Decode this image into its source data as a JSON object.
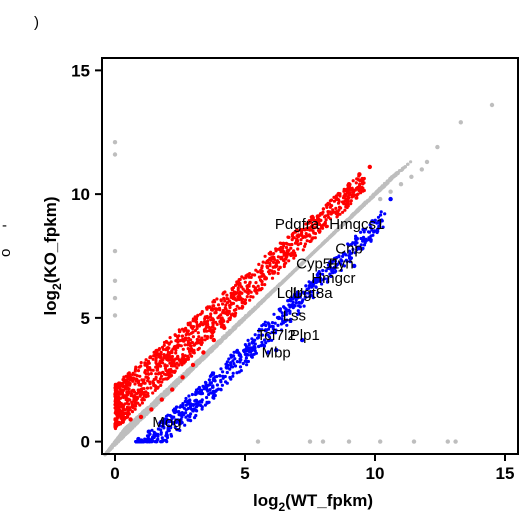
{
  "chart_data": {
    "type": "scatter",
    "title": "",
    "xlabel": {
      "base": "log",
      "sub": "2",
      "rest": "(WT_fpkm)"
    },
    "ylabel": {
      "base": "log",
      "sub": "2",
      "rest": "(KO_fpkm)"
    },
    "xlim": [
      -0.5,
      15.5
    ],
    "ylim": [
      -0.5,
      15.5
    ],
    "x_ticks": [
      0,
      5,
      10,
      15
    ],
    "y_ticks": [
      0,
      5,
      10,
      15
    ],
    "x_tick_labels": [
      "0",
      "5",
      "10",
      "15"
    ],
    "y_tick_labels": [
      "0",
      "5",
      "10",
      "15"
    ],
    "grid": false,
    "colors": {
      "up": "#ff0000",
      "down": "#0000ff",
      "unchanged": "#bebebe"
    },
    "series": [
      {
        "key": "unchanged",
        "color": "#bebebe",
        "points": [
          [
            14.5,
            13.6
          ],
          [
            13.3,
            12.9
          ],
          [
            12.4,
            11.9
          ],
          [
            12.0,
            11.3
          ],
          [
            11.8,
            11.0
          ],
          [
            11.4,
            10.7
          ],
          [
            11.0,
            10.4
          ],
          [
            10.6,
            10.1
          ],
          [
            10.2,
            9.8
          ],
          [
            0.0,
            12.1
          ],
          [
            0.0,
            11.6
          ],
          [
            0.0,
            7.7
          ],
          [
            0.0,
            6.5
          ],
          [
            0.0,
            5.8
          ],
          [
            0.0,
            5.1
          ],
          [
            5.5,
            0.0
          ],
          [
            7.5,
            0.0
          ],
          [
            8.0,
            0.0
          ],
          [
            9.0,
            0.0
          ],
          [
            10.2,
            0.0
          ],
          [
            11.5,
            0.0
          ],
          [
            12.8,
            0.0
          ],
          [
            13.1,
            0.0
          ]
        ]
      },
      {
        "key": "up",
        "color": "#ff0000",
        "points": [
          [
            9.8,
            11.1
          ],
          [
            9.4,
            10.8
          ],
          [
            9.0,
            10.4
          ],
          [
            8.6,
            10.0
          ],
          [
            8.2,
            9.6
          ],
          [
            7.8,
            9.1
          ],
          [
            7.4,
            8.6
          ],
          [
            7.0,
            8.1
          ],
          [
            6.6,
            7.6
          ],
          [
            6.2,
            7.1
          ],
          [
            5.8,
            6.6
          ],
          [
            5.4,
            6.1
          ],
          [
            5.0,
            5.6
          ],
          [
            4.6,
            5.1
          ],
          [
            4.2,
            4.6
          ],
          [
            3.8,
            4.1
          ],
          [
            3.4,
            3.6
          ],
          [
            3.0,
            3.1
          ],
          [
            2.6,
            2.6
          ],
          [
            2.2,
            2.1
          ],
          [
            1.8,
            1.7
          ],
          [
            1.4,
            1.3
          ],
          [
            1.0,
            1.0
          ],
          [
            0.6,
            0.9
          ],
          [
            0.3,
            0.8
          ]
        ]
      },
      {
        "key": "down",
        "color": "#0000ff",
        "points": [
          [
            10.6,
            9.8
          ],
          [
            9.9,
            8.9
          ],
          [
            9.3,
            8.2
          ],
          [
            8.8,
            7.6
          ],
          [
            8.3,
            7.0
          ],
          [
            7.8,
            6.5
          ],
          [
            7.3,
            6.0
          ],
          [
            6.8,
            5.5
          ],
          [
            6.3,
            5.0
          ],
          [
            5.8,
            4.5
          ],
          [
            5.3,
            4.0
          ],
          [
            4.8,
            3.5
          ],
          [
            4.3,
            3.0
          ],
          [
            3.8,
            2.5
          ],
          [
            3.3,
            2.0
          ],
          [
            2.8,
            1.6
          ],
          [
            2.3,
            1.2
          ],
          [
            1.8,
            0.8
          ],
          [
            1.3,
            0.4
          ],
          [
            0.9,
            0.1
          ],
          [
            7.2,
            4.1
          ],
          [
            6.2,
            3.7
          ],
          [
            5.9,
            3.6
          ],
          [
            9.2,
            7.1
          ]
        ]
      }
    ],
    "annotations": [
      {
        "text": "Pdgfra",
        "x": 7.0,
        "y": 8.6
      },
      {
        "text": "Hmgcs1",
        "x": 9.3,
        "y": 8.6
      },
      {
        "text": "Cnp",
        "x": 9.0,
        "y": 7.6
      },
      {
        "text": "Cyp51",
        "x": 7.8,
        "y": 7.0
      },
      {
        "text": "Fyn",
        "x": 8.7,
        "y": 7.0
      },
      {
        "text": "Hmgcr",
        "x": 8.4,
        "y": 6.4
      },
      {
        "text": "Ldlr",
        "x": 6.7,
        "y": 5.8
      },
      {
        "text": "Ugt8a",
        "x": 7.6,
        "y": 5.8
      },
      {
        "text": "Lss",
        "x": 6.9,
        "y": 4.9
      },
      {
        "text": "Tcf7l2",
        "x": 6.2,
        "y": 4.1
      },
      {
        "text": "Plp1",
        "x": 7.3,
        "y": 4.1
      },
      {
        "text": "Mbp",
        "x": 6.2,
        "y": 3.4
      },
      {
        "text": "Mog",
        "x": 2.0,
        "y": 0.6
      }
    ]
  },
  "edge_marks": [
    ")",
    "-",
    "o"
  ]
}
